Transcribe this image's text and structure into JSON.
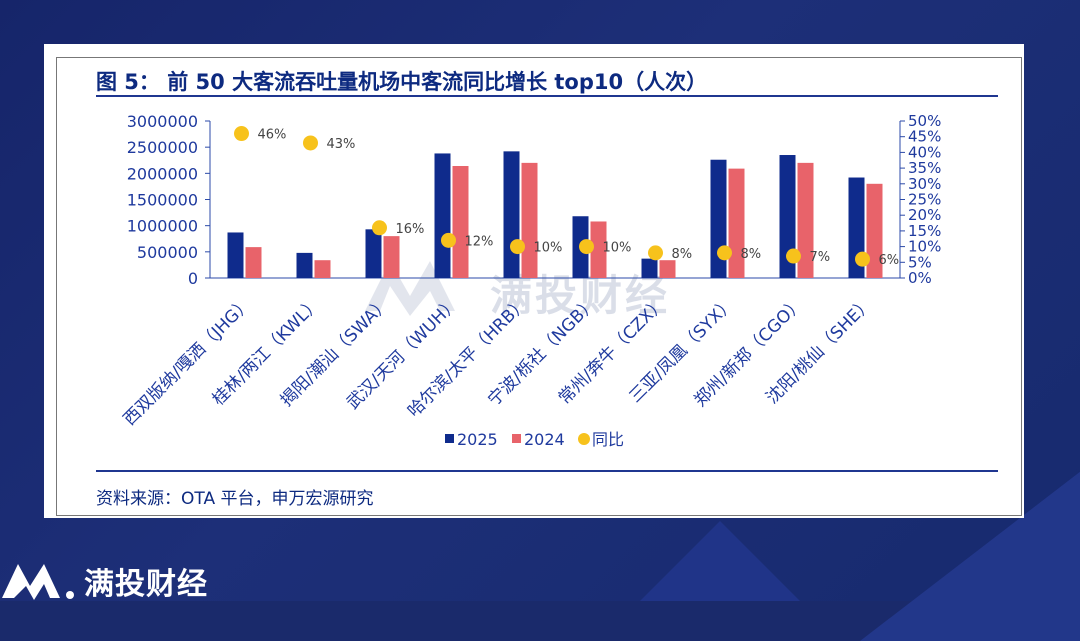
{
  "title": "图 5：  前 50 大客流吞吐量机场中客流同比增长 top10（人次）",
  "source": "资料来源：OTA 平台，申万宏源研究",
  "brand": "满投财经",
  "watermark": "满投财经",
  "colors": {
    "bar2025": "#0f2b8c",
    "bar2024": "#e8636a",
    "yoy": "#f7c21c",
    "title": "#0d2a80"
  },
  "chart_data": {
    "type": "bar",
    "categories": [
      "西双版纳/嘎洒（JHG）",
      "桂林/两江（KWL）",
      "揭阳/潮汕（SWA）",
      "武汉/天河（WUH）",
      "哈尔滨/太平（HRB）",
      "宁波/栎社（NGB）",
      "常州/奔牛（CZX）",
      "三亚/凤凰（SYX）",
      "郑州/新郑（CGO）",
      "沈阳/桃仙（SHE）"
    ],
    "series": [
      {
        "name": "2025",
        "type": "bar",
        "axis": "left",
        "values": [
          870000,
          480000,
          930000,
          2380000,
          2420000,
          1180000,
          370000,
          2260000,
          2350000,
          1920000
        ]
      },
      {
        "name": "2024",
        "type": "bar",
        "axis": "left",
        "values": [
          590000,
          340000,
          800000,
          2140000,
          2200000,
          1080000,
          340000,
          2090000,
          2200000,
          1800000
        ]
      },
      {
        "name": "同比",
        "type": "scatter",
        "axis": "right",
        "values": [
          0.46,
          0.43,
          0.16,
          0.12,
          0.1,
          0.1,
          0.08,
          0.08,
          0.07,
          0.06
        ]
      }
    ],
    "data_labels": [
      "46%",
      "43%",
      "16%",
      "12%",
      "10%",
      "10%",
      "8%",
      "8%",
      "7%",
      "6%"
    ],
    "left_ticks": [
      "0",
      "500000",
      "1000000",
      "1500000",
      "2000000",
      "2500000",
      "3000000"
    ],
    "right_ticks": [
      "0%",
      "5%",
      "10%",
      "15%",
      "20%",
      "25%",
      "30%",
      "35%",
      "40%",
      "45%",
      "50%"
    ],
    "ylim_left": [
      0,
      3000000
    ],
    "ylim_right": [
      0,
      0.5
    ],
    "legend_position": "bottom"
  }
}
